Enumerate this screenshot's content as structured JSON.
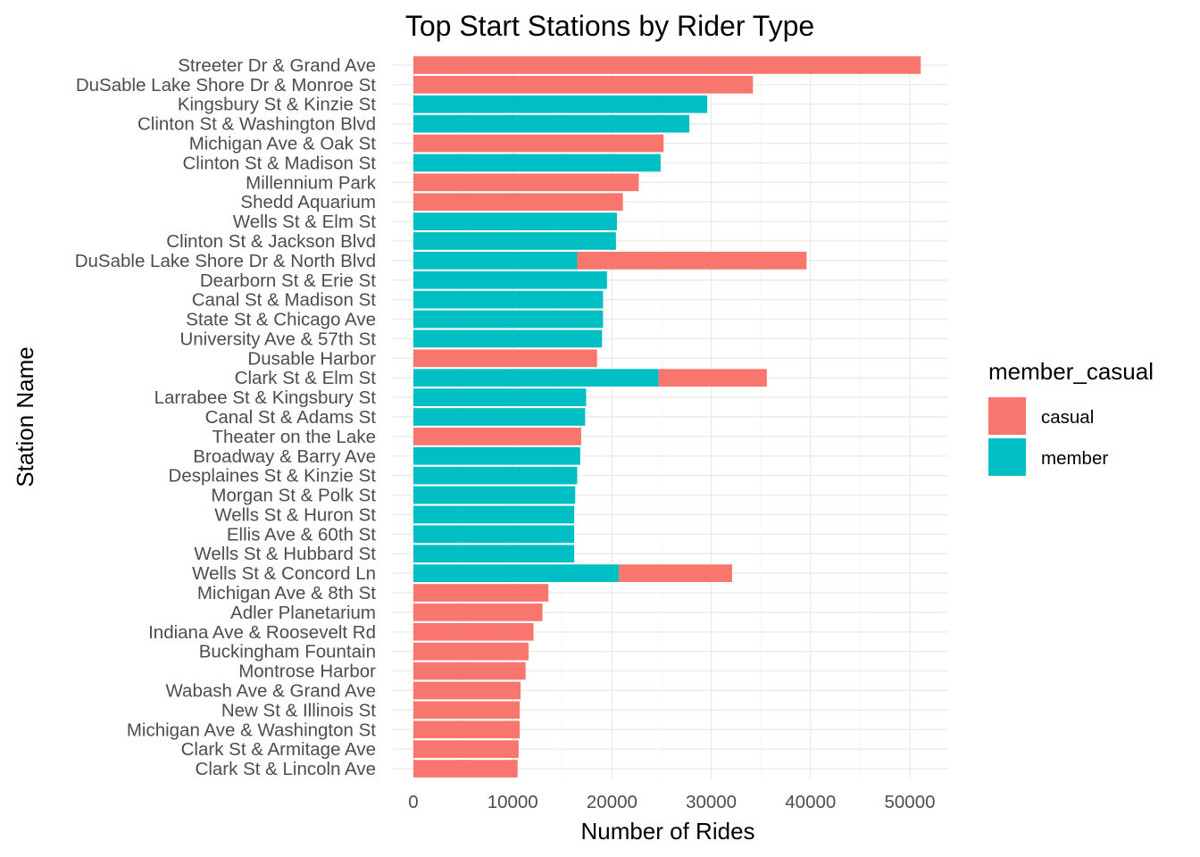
{
  "chart_data": {
    "type": "bar",
    "orientation": "horizontal",
    "stacked": true,
    "title": "Top Start Stations by Rider Type",
    "xlabel": "Number of Rides",
    "ylabel": "Station Name",
    "xlim": [
      0,
      53500
    ],
    "x_ticks": [
      0,
      10000,
      20000,
      30000,
      40000,
      50000
    ],
    "x_tick_labels": [
      "0",
      "10000",
      "20000",
      "30000",
      "40000",
      "50000"
    ],
    "grid": true,
    "legend": {
      "title": "member_casual",
      "placement": "right"
    },
    "categories": [
      "Streeter Dr & Grand Ave",
      "DuSable Lake Shore Dr & Monroe St",
      "Kingsbury St & Kinzie St",
      "Clinton St & Washington Blvd",
      "Michigan Ave & Oak St",
      "Clinton St & Madison St",
      "Millennium Park",
      "Shedd Aquarium",
      "Wells St & Elm St",
      "Clinton St & Jackson Blvd",
      "DuSable Lake Shore Dr & North Blvd",
      "Dearborn St & Erie St",
      "Canal St & Madison St",
      "State St & Chicago Ave",
      "University Ave & 57th St",
      "Dusable Harbor",
      "Clark St & Elm St",
      "Larrabee St & Kingsbury St",
      "Canal St & Adams St",
      "Theater on the Lake",
      "Broadway & Barry Ave",
      "Desplaines St & Kinzie St",
      "Morgan St & Polk St",
      "Wells St & Huron St",
      "Ellis Ave & 60th St",
      "Wells St & Hubbard St",
      "Wells St & Concord Ln",
      "Michigan Ave & 8th St",
      "Adler Planetarium",
      "Indiana Ave & Roosevelt Rd",
      "Buckingham Fountain",
      "Montrose Harbor",
      "Wabash Ave & Grand Ave",
      "New St & Illinois St",
      "Michigan Ave & Washington St",
      "Clark St & Armitage Ave",
      "Clark St & Lincoln Ave"
    ],
    "series": [
      {
        "name": "member",
        "color": "#00BFC4",
        "values": [
          0,
          0,
          29600,
          27800,
          0,
          24900,
          0,
          0,
          20500,
          20400,
          16500,
          19500,
          19100,
          19100,
          19000,
          0,
          24700,
          17400,
          17300,
          0,
          16800,
          16500,
          16300,
          16200,
          16200,
          16200,
          20700,
          0,
          0,
          0,
          0,
          0,
          0,
          0,
          0,
          0,
          0
        ]
      },
      {
        "name": "casual",
        "color": "#F8766D",
        "values": [
          51100,
          34200,
          0,
          0,
          25200,
          0,
          22700,
          21100,
          0,
          0,
          23100,
          0,
          0,
          0,
          0,
          18500,
          10900,
          0,
          0,
          16900,
          0,
          0,
          0,
          0,
          0,
          0,
          11400,
          13600,
          13000,
          12100,
          11600,
          11300,
          10800,
          10700,
          10700,
          10600,
          10500
        ]
      }
    ],
    "stack_order": [
      "member",
      "casual"
    ],
    "legend_order": [
      "casual",
      "member"
    ]
  }
}
